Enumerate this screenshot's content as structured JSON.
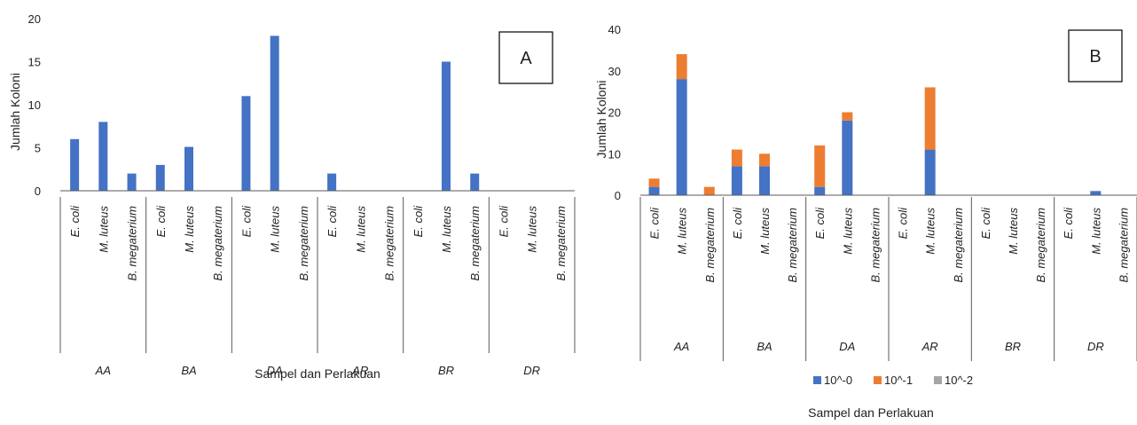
{
  "colors": {
    "s0": "#4472C4",
    "s1": "#ED7D31",
    "s2": "#A5A5A5",
    "axis": "#595959"
  },
  "chart_data": [
    {
      "type": "bar",
      "panel_label": "A",
      "ylabel": "Jumlah Koloni",
      "xlabel": "Sampel dan Perlakuan",
      "ylim": [
        0,
        20
      ],
      "yticks": [
        0,
        5,
        10,
        15,
        20
      ],
      "groups": [
        "AA",
        "BA",
        "DA",
        "AR",
        "BR",
        "DR"
      ],
      "subcategories": [
        "E. coli",
        "M. luteus",
        "B. megaterium"
      ],
      "series": [
        {
          "name": "",
          "values": [
            6,
            8,
            2,
            3,
            5.1,
            0,
            11,
            18,
            0,
            2,
            0,
            0,
            0,
            15,
            2,
            0,
            0,
            0
          ]
        }
      ],
      "legend": "none"
    },
    {
      "type": "bar",
      "stacked": true,
      "panel_label": "B",
      "ylabel": "Jumlah Koloni",
      "xlabel": "Sampel dan Perlakuan",
      "ylim": [
        0,
        40
      ],
      "yticks": [
        0,
        10,
        20,
        30,
        40
      ],
      "groups": [
        "AA",
        "BA",
        "DA",
        "AR",
        "BR",
        "DR"
      ],
      "subcategories": [
        "E. coli",
        "M. luteus",
        "B. megaterium"
      ],
      "series": [
        {
          "name": "10^-0",
          "values": [
            2,
            28,
            0,
            7,
            7,
            0,
            2,
            18,
            0,
            0,
            11,
            0,
            0,
            0,
            0,
            0,
            1,
            0
          ]
        },
        {
          "name": "10^-1",
          "values": [
            2,
            6,
            2,
            4,
            3,
            0,
            10,
            2,
            0,
            0,
            15,
            0,
            0,
            0,
            0,
            0,
            0,
            0
          ]
        },
        {
          "name": "10^-2",
          "values": [
            0,
            0,
            0,
            0,
            0,
            0,
            0,
            0,
            0,
            0,
            0,
            0,
            0,
            0,
            0,
            0,
            0,
            0
          ]
        }
      ],
      "legend": "bottom"
    }
  ]
}
